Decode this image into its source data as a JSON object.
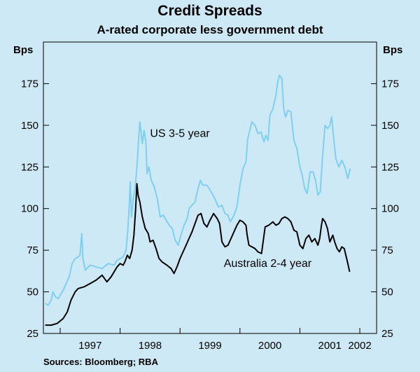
{
  "chart_data": {
    "type": "line",
    "title": "Credit Spreads",
    "subtitle": "A-rated corporate less government debt",
    "ylabel_left": "Bps",
    "ylabel_right": "Bps",
    "ylim": [
      25,
      200
    ],
    "yticks": [
      25,
      50,
      75,
      100,
      125,
      150,
      175
    ],
    "xlim": [
      1996.72,
      2002.28
    ],
    "xticks": [
      "1997",
      "1998",
      "1999",
      "2000",
      "2001",
      "2002"
    ],
    "grid": false,
    "series": [
      {
        "name": "US 3-5 year",
        "color": "#7fd0f0",
        "label_position": [
          1998.5,
          143
        ],
        "points": [
          [
            1996.75,
            43
          ],
          [
            1996.8,
            42
          ],
          [
            1996.85,
            45
          ],
          [
            1996.88,
            50
          ],
          [
            1996.92,
            47
          ],
          [
            1996.97,
            46
          ],
          [
            1997.0,
            48
          ],
          [
            1997.05,
            51
          ],
          [
            1997.1,
            55
          ],
          [
            1997.15,
            59
          ],
          [
            1997.2,
            67
          ],
          [
            1997.25,
            70
          ],
          [
            1997.3,
            71
          ],
          [
            1997.33,
            72
          ],
          [
            1997.36,
            85
          ],
          [
            1997.38,
            70
          ],
          [
            1997.42,
            63
          ],
          [
            1997.5,
            66
          ],
          [
            1997.6,
            65
          ],
          [
            1997.7,
            64
          ],
          [
            1997.8,
            67
          ],
          [
            1997.9,
            66
          ],
          [
            1997.95,
            69
          ],
          [
            1998.05,
            71
          ],
          [
            1998.1,
            75
          ],
          [
            1998.13,
            88
          ],
          [
            1998.15,
            100
          ],
          [
            1998.17,
            116
          ],
          [
            1998.19,
            95
          ],
          [
            1998.22,
            106
          ],
          [
            1998.25,
            112
          ],
          [
            1998.28,
            125
          ],
          [
            1998.31,
            142
          ],
          [
            1998.33,
            152
          ],
          [
            1998.35,
            146
          ],
          [
            1998.37,
            139
          ],
          [
            1998.4,
            147
          ],
          [
            1998.43,
            140
          ],
          [
            1998.45,
            121
          ],
          [
            1998.48,
            125
          ],
          [
            1998.52,
            117
          ],
          [
            1998.57,
            113
          ],
          [
            1998.62,
            106
          ],
          [
            1998.67,
            95
          ],
          [
            1998.72,
            96
          ],
          [
            1998.77,
            93
          ],
          [
            1998.82,
            90
          ],
          [
            1998.87,
            88
          ],
          [
            1998.92,
            81
          ],
          [
            1998.97,
            78
          ],
          [
            1999.03,
            86
          ],
          [
            1999.08,
            91
          ],
          [
            1999.12,
            94
          ],
          [
            1999.15,
            100
          ],
          [
            1999.2,
            102
          ],
          [
            1999.25,
            104
          ],
          [
            1999.3,
            112
          ],
          [
            1999.34,
            117
          ],
          [
            1999.38,
            114
          ],
          [
            1999.45,
            114
          ],
          [
            1999.52,
            110
          ],
          [
            1999.58,
            106
          ],
          [
            1999.64,
            101
          ],
          [
            1999.7,
            102
          ],
          [
            1999.75,
            97
          ],
          [
            1999.8,
            96
          ],
          [
            1999.84,
            92
          ],
          [
            1999.9,
            96
          ],
          [
            1999.95,
            101
          ],
          [
            2000.0,
            114
          ],
          [
            2000.05,
            124
          ],
          [
            2000.1,
            128
          ],
          [
            2000.13,
            142
          ],
          [
            2000.17,
            148
          ],
          [
            2000.2,
            152
          ],
          [
            2000.25,
            150
          ],
          [
            2000.3,
            145
          ],
          [
            2000.35,
            146
          ],
          [
            2000.4,
            140
          ],
          [
            2000.43,
            144
          ],
          [
            2000.47,
            141
          ],
          [
            2000.5,
            156
          ],
          [
            2000.55,
            160
          ],
          [
            2000.6,
            168
          ],
          [
            2000.63,
            176
          ],
          [
            2000.66,
            180
          ],
          [
            2000.7,
            178
          ],
          [
            2000.73,
            160
          ],
          [
            2000.76,
            155
          ],
          [
            2000.8,
            159
          ],
          [
            2000.85,
            158
          ],
          [
            2000.9,
            141
          ],
          [
            2000.95,
            136
          ],
          [
            2001.0,
            125
          ],
          [
            2001.04,
            120
          ],
          [
            2001.08,
            112
          ],
          [
            2001.12,
            109
          ],
          [
            2001.17,
            122
          ],
          [
            2001.22,
            122
          ],
          [
            2001.26,
            117
          ],
          [
            2001.3,
            108
          ],
          [
            2001.34,
            110
          ],
          [
            2001.38,
            132
          ],
          [
            2001.42,
            150
          ],
          [
            2001.46,
            148
          ],
          [
            2001.5,
            150
          ],
          [
            2001.53,
            155
          ],
          [
            2001.57,
            140
          ],
          [
            2001.6,
            130
          ],
          [
            2001.65,
            125
          ],
          [
            2001.7,
            129
          ],
          [
            2001.75,
            125
          ],
          [
            2001.8,
            118
          ],
          [
            2001.84,
            124
          ]
        ]
      },
      {
        "name": "Australia 2-4 year",
        "color": "#000000",
        "label_position": [
          1999.73,
          65
        ],
        "points": [
          [
            1996.75,
            30
          ],
          [
            1996.85,
            30
          ],
          [
            1996.95,
            31
          ],
          [
            1997.05,
            34
          ],
          [
            1997.12,
            38
          ],
          [
            1997.18,
            45
          ],
          [
            1997.25,
            50
          ],
          [
            1997.3,
            52
          ],
          [
            1997.4,
            53
          ],
          [
            1997.5,
            55
          ],
          [
            1997.6,
            57
          ],
          [
            1997.7,
            60
          ],
          [
            1997.78,
            56
          ],
          [
            1997.85,
            59
          ],
          [
            1997.95,
            65
          ],
          [
            1998.0,
            67
          ],
          [
            1998.05,
            66
          ],
          [
            1998.08,
            68
          ],
          [
            1998.12,
            72
          ],
          [
            1998.16,
            70
          ],
          [
            1998.2,
            75
          ],
          [
            1998.23,
            84
          ],
          [
            1998.26,
            100
          ],
          [
            1998.28,
            115
          ],
          [
            1998.3,
            108
          ],
          [
            1998.33,
            104
          ],
          [
            1998.37,
            95
          ],
          [
            1998.42,
            88
          ],
          [
            1998.47,
            85
          ],
          [
            1998.5,
            80
          ],
          [
            1998.55,
            81
          ],
          [
            1998.6,
            76
          ],
          [
            1998.65,
            70
          ],
          [
            1998.7,
            68
          ],
          [
            1998.78,
            66
          ],
          [
            1998.85,
            64
          ],
          [
            1998.9,
            61
          ],
          [
            1998.95,
            65
          ],
          [
            1999.0,
            70
          ],
          [
            1999.05,
            74
          ],
          [
            1999.1,
            78
          ],
          [
            1999.15,
            82
          ],
          [
            1999.2,
            86
          ],
          [
            1999.25,
            91
          ],
          [
            1999.3,
            96
          ],
          [
            1999.35,
            97
          ],
          [
            1999.4,
            91
          ],
          [
            1999.45,
            89
          ],
          [
            1999.5,
            93
          ],
          [
            1999.56,
            97
          ],
          [
            1999.62,
            94
          ],
          [
            1999.66,
            91
          ],
          [
            1999.7,
            80
          ],
          [
            1999.75,
            77
          ],
          [
            1999.8,
            78
          ],
          [
            1999.85,
            82
          ],
          [
            1999.9,
            86
          ],
          [
            1999.95,
            90
          ],
          [
            2000.0,
            93
          ],
          [
            2000.05,
            92
          ],
          [
            2000.1,
            90
          ],
          [
            2000.12,
            84
          ],
          [
            2000.15,
            78
          ],
          [
            2000.2,
            77
          ],
          [
            2000.25,
            76
          ],
          [
            2000.3,
            74
          ],
          [
            2000.36,
            73
          ],
          [
            2000.42,
            89
          ],
          [
            2000.48,
            90
          ],
          [
            2000.55,
            92
          ],
          [
            2000.6,
            90
          ],
          [
            2000.65,
            91
          ],
          [
            2000.7,
            94
          ],
          [
            2000.75,
            95
          ],
          [
            2000.8,
            94
          ],
          [
            2000.85,
            92
          ],
          [
            2000.9,
            87
          ],
          [
            2000.95,
            86
          ],
          [
            2001.0,
            78
          ],
          [
            2001.05,
            76
          ],
          [
            2001.1,
            82
          ],
          [
            2001.15,
            84
          ],
          [
            2001.2,
            80
          ],
          [
            2001.25,
            82
          ],
          [
            2001.3,
            78
          ],
          [
            2001.33,
            82
          ],
          [
            2001.36,
            90
          ],
          [
            2001.38,
            94
          ],
          [
            2001.42,
            92
          ],
          [
            2001.46,
            88
          ],
          [
            2001.5,
            80
          ],
          [
            2001.55,
            84
          ],
          [
            2001.58,
            80
          ],
          [
            2001.62,
            76
          ],
          [
            2001.66,
            74
          ],
          [
            2001.7,
            77
          ],
          [
            2001.74,
            76
          ],
          [
            2001.78,
            70
          ],
          [
            2001.8,
            67
          ],
          [
            2001.83,
            62
          ]
        ]
      }
    ]
  },
  "source": "Sources: Bloomberg; RBA"
}
